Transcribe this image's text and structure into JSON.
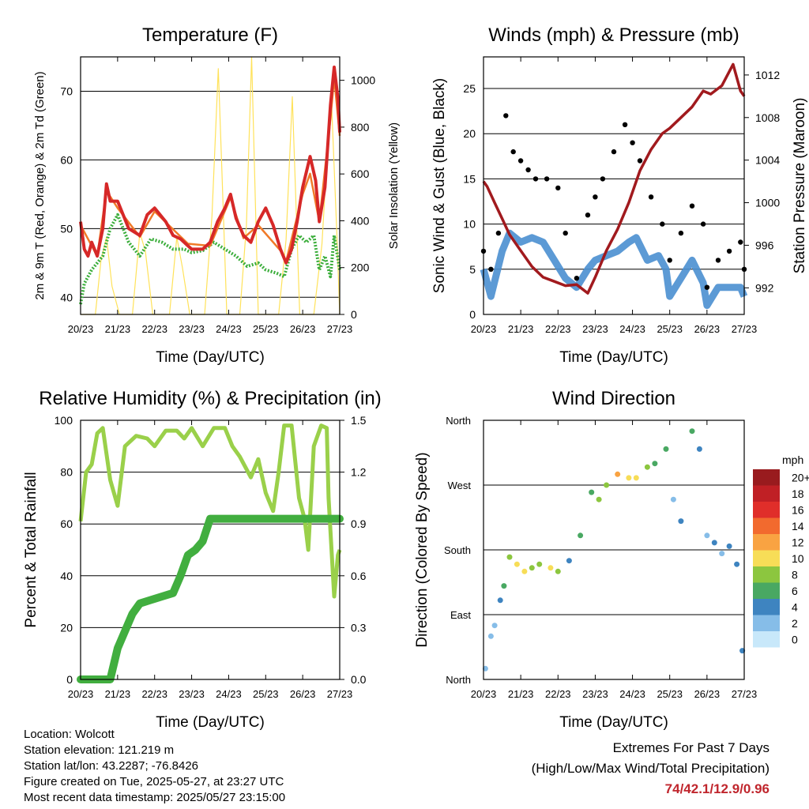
{
  "x_ticks": [
    "20/23",
    "21/23",
    "22/23",
    "23/23",
    "24/23",
    "25/23",
    "26/23",
    "27/23"
  ],
  "colors": {
    "temp2m": "#d62828",
    "temp9m": "#f07a28",
    "dewpoint": "#3cae3c",
    "solar": "#ffe25a",
    "wind": "#4a8fd0",
    "gust": "#000000",
    "pressure": "#a11a1e",
    "rh": "#9ad04a",
    "precip": "#41ae3f",
    "extremes": "#c0262d"
  },
  "chart_data": [
    {
      "type": "line",
      "title": "Temperature (F)",
      "xlabel": "Time (Day/UTC)",
      "ylabel": "2m & 9m T (Red, Orange) & 2m Td (Green)",
      "y2label": "Solar Insolation (Yellow)",
      "ylim": [
        37.5,
        75
      ],
      "yticks": [
        40,
        50,
        60,
        70
      ],
      "y2lim": [
        0,
        1100
      ],
      "y2ticks": [
        0,
        200,
        400,
        600,
        800,
        1000
      ],
      "grid": true,
      "series": [
        {
          "name": "2m T",
          "axis": "left",
          "color": "#d62828",
          "x": [
            0,
            0.1,
            0.2,
            0.3,
            0.45,
            0.6,
            0.7,
            0.8,
            1.0,
            1.3,
            1.6,
            1.8,
            2.0,
            2.3,
            2.5,
            2.7,
            2.9,
            3.0,
            3.3,
            3.5,
            3.7,
            3.9,
            4.05,
            4.2,
            4.4,
            4.6,
            4.8,
            5.0,
            5.2,
            5.4,
            5.55,
            5.7,
            5.85,
            6.0,
            6.2,
            6.35,
            6.45,
            6.6,
            6.75,
            6.85,
            6.95,
            7.0
          ],
          "y": [
            51,
            47,
            46,
            48,
            46,
            50,
            56.5,
            54,
            54,
            50,
            49,
            52,
            53,
            51,
            49,
            48.5,
            47.5,
            47,
            47,
            48,
            51,
            53,
            55,
            51.5,
            49,
            48,
            51,
            53,
            50.5,
            47,
            45,
            47,
            51,
            56,
            60.5,
            57,
            51,
            56,
            68,
            73.5,
            69,
            64
          ]
        },
        {
          "name": "9m T",
          "axis": "left",
          "color": "#f07a28",
          "x": [
            0,
            0.45,
            0.7,
            1.0,
            1.6,
            2.0,
            2.9,
            3.5,
            4.05,
            4.4,
            4.8,
            5.4,
            5.55,
            6.0,
            6.2,
            6.45,
            6.75,
            6.85,
            7.0
          ],
          "y": [
            50.5,
            46,
            55.5,
            53,
            48.8,
            52.5,
            47.8,
            47.5,
            54.5,
            48.6,
            50.5,
            46.8,
            45.2,
            55,
            58,
            51,
            66,
            72,
            63.5
          ]
        },
        {
          "name": "2m Td",
          "axis": "left",
          "color": "#3cae3c",
          "x": [
            0,
            0.1,
            0.3,
            0.6,
            0.8,
            1.0,
            1.3,
            1.6,
            1.9,
            2.2,
            2.5,
            2.8,
            3.0,
            3.3,
            3.6,
            3.9,
            4.2,
            4.5,
            4.8,
            5.0,
            5.3,
            5.5,
            5.7,
            5.9,
            6.1,
            6.3,
            6.45,
            6.6,
            6.75,
            6.85,
            7.0
          ],
          "y": [
            39,
            42,
            44,
            46,
            50,
            52,
            48,
            46,
            48.5,
            48,
            47,
            47,
            46.5,
            46.8,
            48,
            47,
            46,
            44.5,
            45,
            44,
            43.5,
            43,
            47,
            49,
            48,
            49,
            44,
            46,
            43,
            49,
            44
          ]
        },
        {
          "name": "Solar",
          "axis": "right",
          "color": "#ffe25a",
          "x": [
            0,
            0.4,
            0.55,
            0.7,
            0.85,
            1.05,
            1.4,
            1.6,
            1.75,
            1.95,
            2.4,
            2.6,
            2.75,
            2.95,
            3.35,
            3.55,
            3.72,
            3.82,
            3.95,
            4.3,
            4.48,
            4.62,
            4.8,
            5.05,
            5.35,
            5.55,
            5.72,
            5.92,
            6.3,
            6.52,
            6.65,
            6.78,
            6.92,
            7.0
          ],
          "y": [
            0,
            0,
            230,
            330,
            120,
            0,
            0,
            350,
            270,
            0,
            0,
            330,
            200,
            0,
            0,
            420,
            1050,
            600,
            0,
            0,
            380,
            1100,
            0,
            0,
            0,
            320,
            930,
            0,
            0,
            300,
            650,
            900,
            350,
            0
          ]
        }
      ]
    },
    {
      "type": "scatter",
      "title": "Winds (mph) & Pressure (mb)",
      "xlabel": "Time (Day/UTC)",
      "ylabel": "Sonic Wind & Gust (Blue, Black)",
      "y2label": "Station Pressure (Maroon)",
      "ylim": [
        0,
        28.5
      ],
      "yticks": [
        0,
        5,
        10,
        15,
        20,
        25
      ],
      "y2lim": [
        989.5,
        1013.7
      ],
      "y2ticks": [
        992,
        996,
        1000,
        1004,
        1008,
        1012
      ],
      "grid": true,
      "series": [
        {
          "name": "Sonic Wind",
          "axis": "left",
          "color": "#4a8fd0",
          "x": [
            0,
            0.2,
            0.5,
            0.7,
            1.0,
            1.3,
            1.6,
            1.9,
            2.2,
            2.5,
            2.8,
            3.0,
            3.3,
            3.6,
            3.9,
            4.1,
            4.4,
            4.7,
            4.9,
            5.0,
            5.3,
            5.6,
            5.9,
            6.0,
            6.3,
            6.6,
            6.9,
            7.0
          ],
          "y": [
            5,
            2,
            7,
            9,
            8,
            8.5,
            8,
            6,
            4,
            3,
            5,
            6,
            6.5,
            7,
            8,
            8.5,
            6,
            6.5,
            5,
            2,
            4,
            6,
            3.5,
            1,
            3,
            3,
            3,
            2
          ]
        },
        {
          "name": "Gust",
          "axis": "left",
          "color": "#000000",
          "x": [
            0,
            0.2,
            0.4,
            0.6,
            0.8,
            1.0,
            1.2,
            1.4,
            1.7,
            2.0,
            2.2,
            2.5,
            2.8,
            3.0,
            3.2,
            3.5,
            3.8,
            4.0,
            4.2,
            4.5,
            4.8,
            5.0,
            5.3,
            5.6,
            5.9,
            6.0,
            6.3,
            6.6,
            6.9,
            7.0
          ],
          "y": [
            7,
            5,
            9,
            22,
            18,
            17,
            16,
            15,
            15,
            14,
            9,
            4,
            11,
            13,
            15,
            18,
            21,
            19,
            17,
            13,
            10,
            6,
            9,
            12,
            10,
            3,
            6,
            7,
            8,
            5
          ]
        },
        {
          "name": "Station Pressure",
          "axis": "right",
          "color": "#a11a1e",
          "x": [
            0,
            0.1,
            0.3,
            0.5,
            0.7,
            1.0,
            1.3,
            1.6,
            1.9,
            2.2,
            2.5,
            2.8,
            3.0,
            3.3,
            3.6,
            3.9,
            4.2,
            4.5,
            4.8,
            5.0,
            5.3,
            5.6,
            5.9,
            6.1,
            6.4,
            6.7,
            6.9,
            7.0
          ],
          "y": [
            1002,
            1001.5,
            1000,
            998.5,
            997,
            995.5,
            994,
            993,
            992.6,
            992.2,
            992.3,
            991.5,
            993,
            995.5,
            997.5,
            1000,
            1003,
            1005,
            1006.5,
            1007,
            1008,
            1009,
            1010.5,
            1010.2,
            1011,
            1013,
            1010.5,
            1010
          ]
        }
      ]
    },
    {
      "type": "line",
      "title": "Relative Humidity (%) & Precipitation (in)",
      "xlabel": "Time (Day/UTC)",
      "ylabel": "Percent & Total Rainfall",
      "ylim": [
        0,
        100
      ],
      "yticks": [
        0,
        20,
        40,
        60,
        80,
        100
      ],
      "y2lim": [
        0,
        1.5
      ],
      "y2ticks": [
        "0.0",
        "0.3",
        "0.6",
        "0.9",
        "1.2",
        "1.5"
      ],
      "grid": true,
      "series": [
        {
          "name": "Relative Humidity",
          "axis": "left",
          "color": "#9ad04a",
          "x": [
            0,
            0.15,
            0.3,
            0.45,
            0.6,
            0.8,
            1.0,
            1.2,
            1.5,
            1.8,
            2.0,
            2.3,
            2.6,
            2.8,
            3.0,
            3.3,
            3.6,
            3.9,
            4.1,
            4.3,
            4.6,
            4.8,
            5.0,
            5.2,
            5.35,
            5.5,
            5.7,
            5.9,
            6.05,
            6.15,
            6.3,
            6.5,
            6.65,
            6.7,
            6.85,
            6.95,
            7.0
          ],
          "y": [
            61,
            80,
            83,
            95,
            97,
            77,
            67,
            90,
            94,
            93,
            90,
            96,
            96,
            93,
            97,
            90,
            97,
            97,
            90,
            86,
            78,
            85,
            72,
            65,
            80,
            98,
            98,
            70,
            62,
            50,
            90,
            98,
            97,
            70,
            32,
            48,
            50
          ]
        },
        {
          "name": "Total Rainfall",
          "axis": "right",
          "color": "#41ae3f",
          "x": [
            0,
            0.8,
            1.0,
            1.2,
            1.4,
            1.6,
            1.9,
            2.2,
            2.5,
            2.7,
            2.9,
            3.1,
            3.3,
            3.5,
            3.7,
            4.0,
            7.0
          ],
          "y": [
            0,
            0,
            0.18,
            0.28,
            0.38,
            0.44,
            0.46,
            0.48,
            0.5,
            0.6,
            0.72,
            0.75,
            0.8,
            0.93,
            0.93,
            0.93,
            0.93
          ]
        }
      ]
    },
    {
      "type": "scatter",
      "title": "Wind Direction",
      "xlabel": "Time (Day/UTC)",
      "ylabel": "Direction (Colored By Speed)",
      "yticks": [
        "North",
        "East",
        "South",
        "West",
        "North"
      ],
      "ylim": [
        0,
        360
      ],
      "grid": true,
      "legend_title": "mph",
      "legend_labels": [
        "20+",
        "18",
        "16",
        "14",
        "12",
        "10",
        "8",
        "6",
        "4",
        "2",
        "0"
      ],
      "legend_colors": [
        "#991b1e",
        "#c02025",
        "#e02e2a",
        "#f26a2e",
        "#f9a342",
        "#f7dd57",
        "#8cc63f",
        "#49a862",
        "#3e84c0",
        "#86bde8",
        "#c8e8fa"
      ],
      "points": [
        {
          "x": 0.05,
          "y": 15,
          "s": 1
        },
        {
          "x": 0.2,
          "y": 60,
          "s": 2
        },
        {
          "x": 0.3,
          "y": 75,
          "s": 2
        },
        {
          "x": 0.45,
          "y": 110,
          "s": 3
        },
        {
          "x": 0.55,
          "y": 130,
          "s": 5
        },
        {
          "x": 0.7,
          "y": 170,
          "s": 8
        },
        {
          "x": 0.9,
          "y": 160,
          "s": 10
        },
        {
          "x": 1.1,
          "y": 150,
          "s": 9
        },
        {
          "x": 1.3,
          "y": 155,
          "s": 8
        },
        {
          "x": 1.5,
          "y": 160,
          "s": 7
        },
        {
          "x": 1.8,
          "y": 155,
          "s": 9
        },
        {
          "x": 2.0,
          "y": 150,
          "s": 7
        },
        {
          "x": 2.3,
          "y": 165,
          "s": 4
        },
        {
          "x": 2.6,
          "y": 200,
          "s": 5
        },
        {
          "x": 2.9,
          "y": 260,
          "s": 6
        },
        {
          "x": 3.1,
          "y": 250,
          "s": 7
        },
        {
          "x": 3.3,
          "y": 270,
          "s": 8
        },
        {
          "x": 3.6,
          "y": 285,
          "s": 12
        },
        {
          "x": 3.9,
          "y": 280,
          "s": 10
        },
        {
          "x": 4.1,
          "y": 280,
          "s": 9
        },
        {
          "x": 4.4,
          "y": 295,
          "s": 8
        },
        {
          "x": 4.6,
          "y": 300,
          "s": 6
        },
        {
          "x": 4.9,
          "y": 320,
          "s": 5
        },
        {
          "x": 5.1,
          "y": 250,
          "s": 2
        },
        {
          "x": 5.3,
          "y": 220,
          "s": 3
        },
        {
          "x": 5.6,
          "y": 345,
          "s": 5
        },
        {
          "x": 5.8,
          "y": 320,
          "s": 4
        },
        {
          "x": 6.0,
          "y": 200,
          "s": 2
        },
        {
          "x": 6.2,
          "y": 190,
          "s": 3
        },
        {
          "x": 6.4,
          "y": 175,
          "s": 2
        },
        {
          "x": 6.6,
          "y": 185,
          "s": 4
        },
        {
          "x": 6.8,
          "y": 160,
          "s": 3
        },
        {
          "x": 6.95,
          "y": 40,
          "s": 4
        }
      ]
    }
  ],
  "info": {
    "location": "Location: Wolcott",
    "elevation": "Station elevation: 121.219 m",
    "latlon": "Station lat/lon: 43.2287; -76.8426",
    "created": "Figure created on Tue, 2025-05-27, at 23:27 UTC",
    "recent": "Most recent data timestamp: 2025/05/27 23:15:00"
  },
  "extremes": {
    "title": "Extremes For Past 7 Days",
    "subtitle": "(High/Low/Max Wind/Total Precipitation)",
    "values": "74/42.1/12.9/0.96"
  }
}
